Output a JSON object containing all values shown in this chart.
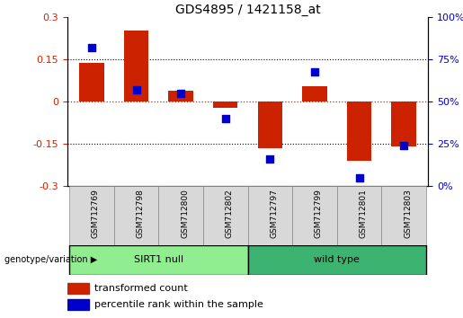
{
  "title": "GDS4895 / 1421158_at",
  "samples": [
    "GSM712769",
    "GSM712798",
    "GSM712800",
    "GSM712802",
    "GSM712797",
    "GSM712799",
    "GSM712801",
    "GSM712803"
  ],
  "transformed_count": [
    0.14,
    0.255,
    0.04,
    -0.02,
    -0.165,
    0.055,
    -0.21,
    -0.16
  ],
  "percentile_rank": [
    82,
    57,
    55,
    40,
    16,
    68,
    5,
    24
  ],
  "groups": [
    {
      "label": "SIRT1 null",
      "indices": [
        0,
        3
      ],
      "color": "#90EE90"
    },
    {
      "label": "wild type",
      "indices": [
        4,
        7
      ],
      "color": "#3CB371"
    }
  ],
  "bar_color": "#CC2200",
  "dot_color": "#0000CC",
  "ylim_left": [
    -0.3,
    0.3
  ],
  "ylim_right": [
    0,
    100
  ],
  "yticks_left": [
    -0.3,
    -0.15,
    0,
    0.15,
    0.3
  ],
  "yticks_right": [
    0,
    25,
    50,
    75,
    100
  ],
  "bar_width": 0.55,
  "dot_size": 35,
  "genotype_label": "genotype/variation",
  "legend_items": [
    {
      "label": "transformed count",
      "color": "#CC2200"
    },
    {
      "label": "percentile rank within the sample",
      "color": "#0000CC"
    }
  ]
}
